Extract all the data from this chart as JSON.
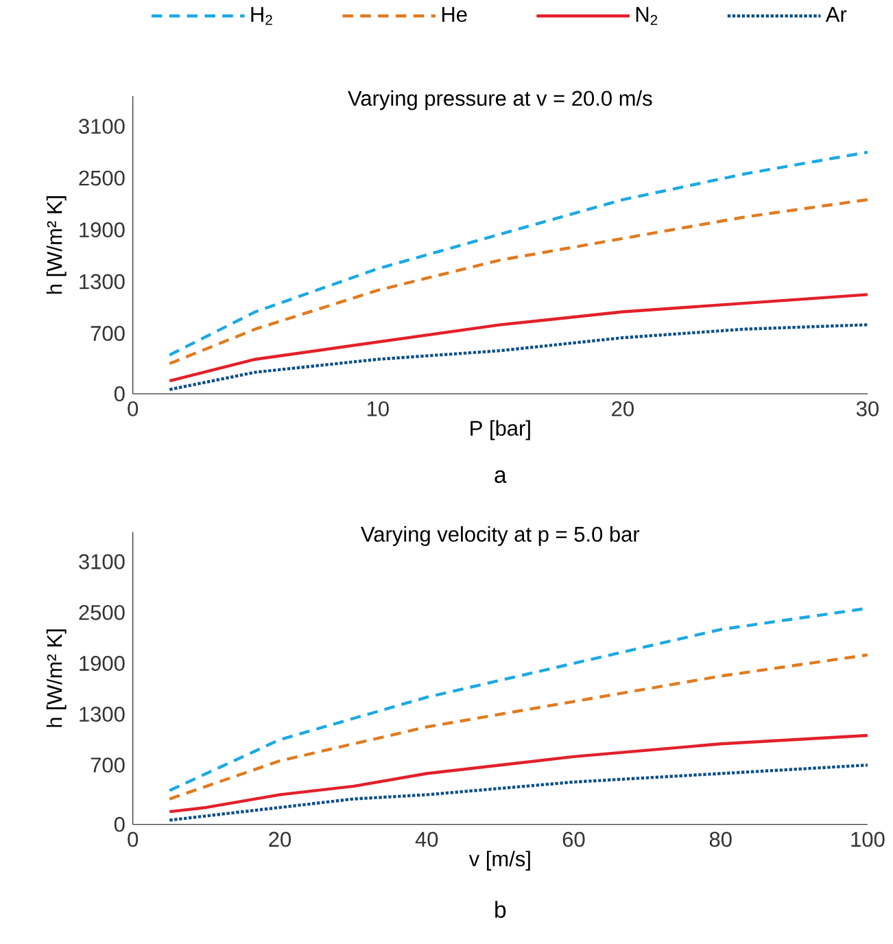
{
  "chart_data": [
    {
      "type": "line",
      "title": "Varying pressure at v = 20.0 m/s",
      "xlabel": "P [bar]",
      "ylabel": "h [W/m² K]",
      "annotations": [
        "a"
      ],
      "xlim": [
        0,
        30
      ],
      "xticks": [
        0,
        10,
        20,
        30
      ],
      "ylim": [
        0,
        3450
      ],
      "yticks": [
        0,
        700,
        1300,
        1900,
        2500,
        3100
      ],
      "legend": "top",
      "x": [
        1.5,
        5,
        10,
        15,
        20,
        25,
        30
      ],
      "series": [
        {
          "name": "H$_{2}$",
          "color": "#1ba9e6",
          "line_style": "dashed",
          "values": [
            450,
            950,
            1450,
            1850,
            2250,
            2550,
            2800
          ]
        },
        {
          "name": "He",
          "color": "#e07b20",
          "line_style": "dashed",
          "values": [
            350,
            750,
            1200,
            1550,
            1800,
            2050,
            2250
          ]
        },
        {
          "name": "N$_{2}$",
          "color": "#e3202a",
          "line_style": "solid",
          "values": [
            150,
            400,
            600,
            800,
            950,
            1050,
            1150
          ]
        },
        {
          "name": "Ar",
          "color": "#0b4f8a",
          "line_style": "dotted",
          "values": [
            50,
            250,
            400,
            500,
            650,
            750,
            800
          ]
        }
      ]
    },
    {
      "type": "line",
      "title": "Varying velocity at p = 5.0 bar",
      "xlabel": "v [m/s]",
      "ylabel": "h [W/m² K]",
      "annotations": [
        "b"
      ],
      "xlim": [
        0,
        100
      ],
      "xticks": [
        0,
        20,
        40,
        60,
        80,
        100
      ],
      "ylim": [
        0,
        3450
      ],
      "yticks": [
        0,
        700,
        1300,
        1900,
        2500,
        3100
      ],
      "x": [
        5,
        10,
        20,
        30,
        40,
        60,
        80,
        100
      ],
      "series": [
        {
          "color": "#1ba9e6",
          "line_style": "dashed",
          "values": [
            400,
            600,
            1000,
            1250,
            1500,
            1900,
            2300,
            2550
          ]
        },
        {
          "color": "#e07b20",
          "line_style": "dashed",
          "values": [
            300,
            450,
            750,
            950,
            1150,
            1450,
            1750,
            2000
          ]
        },
        {
          "color": "#e3202a",
          "line_style": "solid",
          "values": [
            150,
            200,
            350,
            450,
            600,
            800,
            950,
            1050
          ]
        },
        {
          "color": "#0b4f8a",
          "line_style": "dotted",
          "values": [
            50,
            100,
            200,
            300,
            350,
            500,
            600,
            700
          ]
        }
      ]
    }
  ]
}
